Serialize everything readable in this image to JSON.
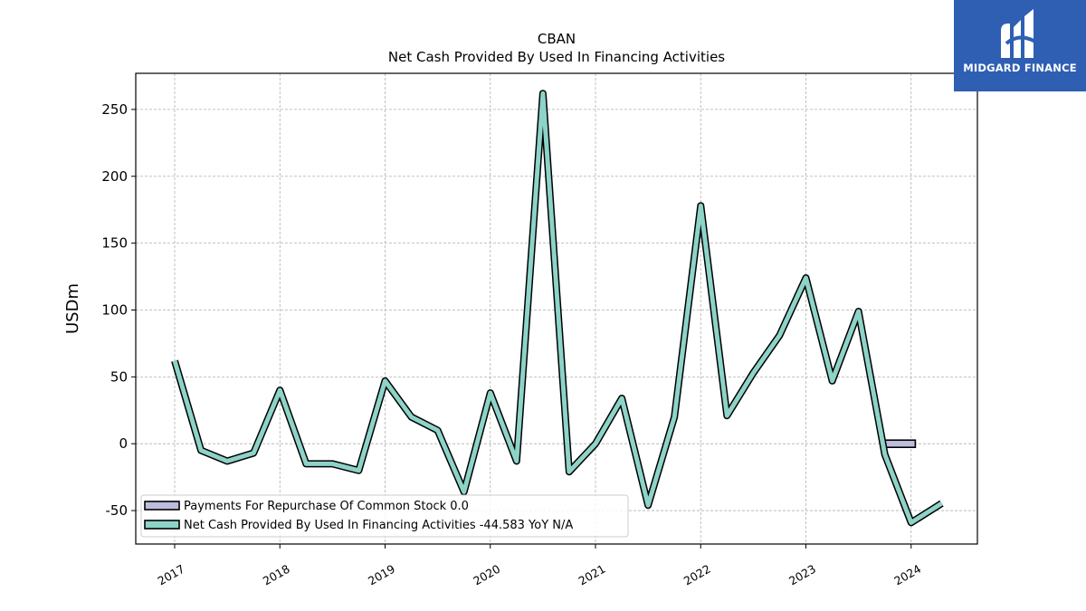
{
  "chart_data": {
    "type": "line",
    "title": "CBAN",
    "subtitle": "Net Cash Provided By Used In Financing Activities",
    "xlabel": "",
    "ylabel": "USDm",
    "ylim": [
      -75,
      277
    ],
    "xlim": [
      2016.63,
      2024.63
    ],
    "yticks": [
      -50,
      0,
      50,
      100,
      150,
      200,
      250
    ],
    "xticks": [
      2017,
      2018,
      2019,
      2020,
      2021,
      2022,
      2023,
      2024
    ],
    "xtick_labels": [
      "2017",
      "2018",
      "2019",
      "2020",
      "2021",
      "2022",
      "2023",
      "2024"
    ],
    "grid": true,
    "legend_position": "lower-left",
    "series": [
      {
        "name": "Payments For Repurchase Of Common Stock",
        "legend_label": "Payments For Repurchase Of Common Stock  0.0",
        "kind": "bar",
        "color": "#bcbddc",
        "points": [
          [
            2023.75,
            0
          ],
          [
            2024.04,
            0
          ]
        ]
      },
      {
        "name": "Net Cash Provided By Used In Financing Activities",
        "legend_label": "Net Cash Provided By Used In Financing Activities  -44.583 YoY N/A",
        "kind": "line",
        "color": "#8dd3c7",
        "points": [
          [
            2017.0,
            62
          ],
          [
            2017.25,
            -5
          ],
          [
            2017.5,
            -13
          ],
          [
            2017.75,
            -7
          ],
          [
            2018.0,
            40
          ],
          [
            2018.25,
            -15
          ],
          [
            2018.5,
            -15
          ],
          [
            2018.75,
            -20
          ],
          [
            2019.0,
            47
          ],
          [
            2019.25,
            20
          ],
          [
            2019.5,
            10
          ],
          [
            2019.75,
            -36
          ],
          [
            2020.0,
            38
          ],
          [
            2020.25,
            -13
          ],
          [
            2020.5,
            262
          ],
          [
            2020.75,
            -21
          ],
          [
            2021.0,
            0
          ],
          [
            2021.25,
            34
          ],
          [
            2021.5,
            -46
          ],
          [
            2021.75,
            20
          ],
          [
            2022.0,
            178
          ],
          [
            2022.25,
            21
          ],
          [
            2022.5,
            53
          ],
          [
            2022.75,
            81
          ],
          [
            2023.0,
            124
          ],
          [
            2023.25,
            47
          ],
          [
            2023.5,
            99
          ],
          [
            2023.75,
            -8
          ],
          [
            2024.0,
            -59
          ],
          [
            2024.29,
            -44.583
          ]
        ]
      }
    ]
  },
  "logo": {
    "text": "MIDGARD FINANCE"
  }
}
